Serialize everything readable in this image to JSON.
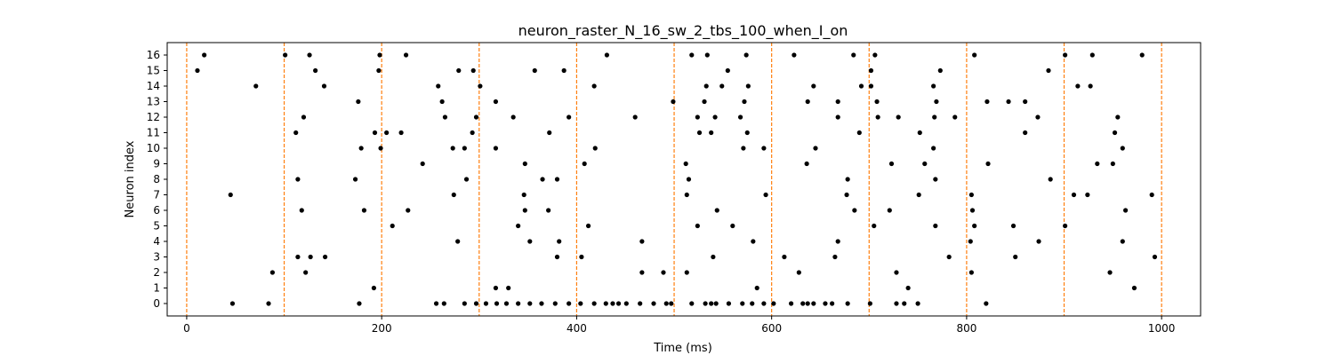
{
  "chart_data": {
    "type": "scatter",
    "title": "neuron_raster_N_16_sw_2_tbs_100_when_I_on",
    "xlabel": "Time (ms)",
    "ylabel": "Neuron index",
    "xlim": [
      -20,
      1040
    ],
    "ylim": [
      -0.8,
      16.8
    ],
    "x_ticks": [
      0,
      200,
      400,
      600,
      800,
      1000
    ],
    "y_ticks": [
      0,
      1,
      2,
      3,
      4,
      5,
      6,
      7,
      8,
      9,
      10,
      11,
      12,
      13,
      14,
      15,
      16
    ],
    "grid": false,
    "marker_color": "#000000",
    "vline_color": "#ff7f0e",
    "vlines": [
      0,
      100,
      200,
      300,
      400,
      500,
      600,
      700,
      800,
      900,
      1000
    ],
    "spikes": [
      [
        47,
        0
      ],
      [
        84,
        0
      ],
      [
        177,
        0
      ],
      [
        256,
        0
      ],
      [
        264,
        0
      ],
      [
        285,
        0
      ],
      [
        297,
        0
      ],
      [
        307,
        0
      ],
      [
        318,
        0
      ],
      [
        328,
        0
      ],
      [
        340,
        0
      ],
      [
        352,
        0
      ],
      [
        364,
        0
      ],
      [
        378,
        0
      ],
      [
        392,
        0
      ],
      [
        404,
        0
      ],
      [
        418,
        0
      ],
      [
        430,
        0
      ],
      [
        437,
        0
      ],
      [
        443,
        0
      ],
      [
        451,
        0
      ],
      [
        465,
        0
      ],
      [
        479,
        0
      ],
      [
        492,
        0
      ],
      [
        497,
        0
      ],
      [
        518,
        0
      ],
      [
        532,
        0
      ],
      [
        538,
        0
      ],
      [
        543,
        0
      ],
      [
        556,
        0
      ],
      [
        570,
        0
      ],
      [
        580,
        0
      ],
      [
        592,
        0
      ],
      [
        602,
        0
      ],
      [
        620,
        0
      ],
      [
        632,
        0
      ],
      [
        637,
        0
      ],
      [
        643,
        0
      ],
      [
        655,
        0
      ],
      [
        662,
        0
      ],
      [
        678,
        0
      ],
      [
        701,
        0
      ],
      [
        728,
        0
      ],
      [
        736,
        0
      ],
      [
        750,
        0
      ],
      [
        820,
        0
      ],
      [
        192,
        1
      ],
      [
        317,
        1
      ],
      [
        330,
        1
      ],
      [
        585,
        1
      ],
      [
        740,
        1
      ],
      [
        972,
        1
      ],
      [
        88,
        2
      ],
      [
        122,
        2
      ],
      [
        467,
        2
      ],
      [
        489,
        2
      ],
      [
        513,
        2
      ],
      [
        628,
        2
      ],
      [
        728,
        2
      ],
      [
        805,
        2
      ],
      [
        947,
        2
      ],
      [
        114,
        3
      ],
      [
        127,
        3
      ],
      [
        142,
        3
      ],
      [
        380,
        3
      ],
      [
        405,
        3
      ],
      [
        540,
        3
      ],
      [
        613,
        3
      ],
      [
        665,
        3
      ],
      [
        782,
        3
      ],
      [
        850,
        3
      ],
      [
        993,
        3
      ],
      [
        278,
        4
      ],
      [
        352,
        4
      ],
      [
        382,
        4
      ],
      [
        467,
        4
      ],
      [
        581,
        4
      ],
      [
        668,
        4
      ],
      [
        804,
        4
      ],
      [
        874,
        4
      ],
      [
        960,
        4
      ],
      [
        211,
        5
      ],
      [
        340,
        5
      ],
      [
        412,
        5
      ],
      [
        524,
        5
      ],
      [
        560,
        5
      ],
      [
        705,
        5
      ],
      [
        768,
        5
      ],
      [
        808,
        5
      ],
      [
        848,
        5
      ],
      [
        901,
        5
      ],
      [
        118,
        6
      ],
      [
        182,
        6
      ],
      [
        227,
        6
      ],
      [
        347,
        6
      ],
      [
        371,
        6
      ],
      [
        544,
        6
      ],
      [
        685,
        6
      ],
      [
        721,
        6
      ],
      [
        806,
        6
      ],
      [
        963,
        6
      ],
      [
        45,
        7
      ],
      [
        274,
        7
      ],
      [
        346,
        7
      ],
      [
        513,
        7
      ],
      [
        594,
        7
      ],
      [
        677,
        7
      ],
      [
        751,
        7
      ],
      [
        805,
        7
      ],
      [
        910,
        7
      ],
      [
        924,
        7
      ],
      [
        990,
        7
      ],
      [
        114,
        8
      ],
      [
        173,
        8
      ],
      [
        287,
        8
      ],
      [
        365,
        8
      ],
      [
        380,
        8
      ],
      [
        515,
        8
      ],
      [
        678,
        8
      ],
      [
        768,
        8
      ],
      [
        886,
        8
      ],
      [
        242,
        9
      ],
      [
        347,
        9
      ],
      [
        408,
        9
      ],
      [
        512,
        9
      ],
      [
        636,
        9
      ],
      [
        723,
        9
      ],
      [
        757,
        9
      ],
      [
        822,
        9
      ],
      [
        934,
        9
      ],
      [
        950,
        9
      ],
      [
        179,
        10
      ],
      [
        199,
        10
      ],
      [
        273,
        10
      ],
      [
        285,
        10
      ],
      [
        317,
        10
      ],
      [
        419,
        10
      ],
      [
        571,
        10
      ],
      [
        592,
        10
      ],
      [
        645,
        10
      ],
      [
        766,
        10
      ],
      [
        960,
        10
      ],
      [
        112,
        11
      ],
      [
        193,
        11
      ],
      [
        205,
        11
      ],
      [
        220,
        11
      ],
      [
        293,
        11
      ],
      [
        372,
        11
      ],
      [
        526,
        11
      ],
      [
        538,
        11
      ],
      [
        575,
        11
      ],
      [
        690,
        11
      ],
      [
        752,
        11
      ],
      [
        860,
        11
      ],
      [
        952,
        11
      ],
      [
        120,
        12
      ],
      [
        265,
        12
      ],
      [
        297,
        12
      ],
      [
        335,
        12
      ],
      [
        392,
        12
      ],
      [
        460,
        12
      ],
      [
        524,
        12
      ],
      [
        542,
        12
      ],
      [
        568,
        12
      ],
      [
        668,
        12
      ],
      [
        709,
        12
      ],
      [
        730,
        12
      ],
      [
        767,
        12
      ],
      [
        788,
        12
      ],
      [
        873,
        12
      ],
      [
        955,
        12
      ],
      [
        176,
        13
      ],
      [
        262,
        13
      ],
      [
        317,
        13
      ],
      [
        499,
        13
      ],
      [
        531,
        13
      ],
      [
        572,
        13
      ],
      [
        637,
        13
      ],
      [
        668,
        13
      ],
      [
        708,
        13
      ],
      [
        769,
        13
      ],
      [
        821,
        13
      ],
      [
        843,
        13
      ],
      [
        860,
        13
      ],
      [
        71,
        14
      ],
      [
        141,
        14
      ],
      [
        258,
        14
      ],
      [
        301,
        14
      ],
      [
        418,
        14
      ],
      [
        533,
        14
      ],
      [
        549,
        14
      ],
      [
        576,
        14
      ],
      [
        643,
        14
      ],
      [
        692,
        14
      ],
      [
        702,
        14
      ],
      [
        766,
        14
      ],
      [
        914,
        14
      ],
      [
        927,
        14
      ],
      [
        11,
        15
      ],
      [
        132,
        15
      ],
      [
        197,
        15
      ],
      [
        279,
        15
      ],
      [
        294,
        15
      ],
      [
        357,
        15
      ],
      [
        387,
        15
      ],
      [
        555,
        15
      ],
      [
        702,
        15
      ],
      [
        773,
        15
      ],
      [
        884,
        15
      ],
      [
        18,
        16
      ],
      [
        101,
        16
      ],
      [
        126,
        16
      ],
      [
        198,
        16
      ],
      [
        225,
        16
      ],
      [
        431,
        16
      ],
      [
        518,
        16
      ],
      [
        534,
        16
      ],
      [
        574,
        16
      ],
      [
        623,
        16
      ],
      [
        684,
        16
      ],
      [
        706,
        16
      ],
      [
        808,
        16
      ],
      [
        901,
        16
      ],
      [
        929,
        16
      ],
      [
        980,
        16
      ]
    ]
  }
}
